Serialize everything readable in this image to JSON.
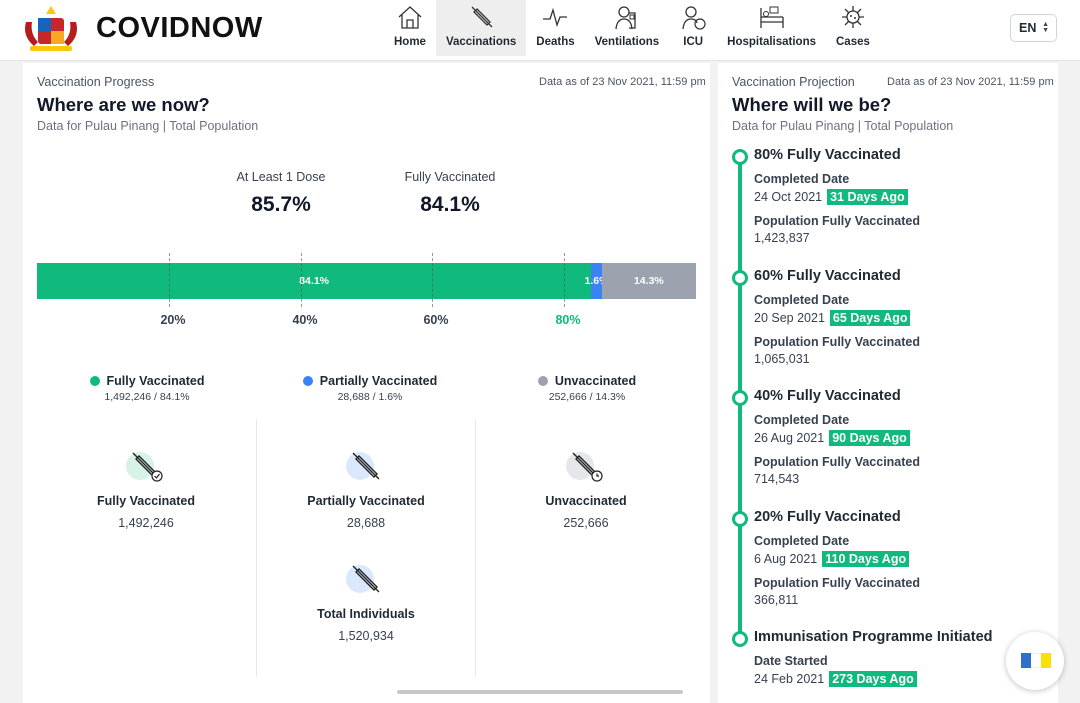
{
  "header": {
    "brand": "COVIDNOW",
    "nav": [
      {
        "label": "Home",
        "icon": "home-icon"
      },
      {
        "label": "Vaccinations",
        "icon": "syringe-icon",
        "active": true
      },
      {
        "label": "Deaths",
        "icon": "pulse-icon"
      },
      {
        "label": "Ventilations",
        "icon": "ventilator-icon"
      },
      {
        "label": "ICU",
        "icon": "icu-icon"
      },
      {
        "label": "Hospitalisations",
        "icon": "hospital-bed-icon"
      },
      {
        "label": "Cases",
        "icon": "virus-icon"
      }
    ],
    "language": "EN"
  },
  "progress": {
    "eyebrow": "Vaccination Progress",
    "as_of": "Data as of 23 Nov 2021, 11:59 pm",
    "title": "Where are we now?",
    "subtitle": "Data for Pulau Pinang | Total Population",
    "at_least_one_label": "At Least 1 Dose",
    "at_least_one_value": "85.7%",
    "fully_label": "Fully Vaccinated",
    "fully_value": "84.1%",
    "bar": {
      "fully_pct": 84.1,
      "partial_pct": 1.6,
      "unvacc_pct": 14.3,
      "fully_text": "84.1%",
      "partial_text": "1.6%",
      "unvacc_text": "14.3%"
    },
    "ticks": [
      "20%",
      "40%",
      "60%",
      "80%"
    ],
    "legend": [
      {
        "label": "Fully Vaccinated",
        "value": "1,492,246 / 84.1%",
        "color": "#10b97c"
      },
      {
        "label": "Partially Vaccinated",
        "value": "28,688 / 1.6%",
        "color": "#3b82f6"
      },
      {
        "label": "Unvaccinated",
        "value": "252,666 / 14.3%",
        "color": "#9ca3af"
      }
    ],
    "counts": [
      {
        "label": "Fully Vaccinated",
        "value": "1,492,246"
      },
      {
        "label": "Partially Vaccinated",
        "value": "28,688"
      },
      {
        "label": "Unvaccinated",
        "value": "252,666"
      },
      {
        "label": "Total Individuals",
        "value": "1,520,934"
      }
    ]
  },
  "projection": {
    "eyebrow": "Vaccination Projection",
    "as_of": "Data as of 23 Nov 2021, 11:59 pm",
    "title": "Where will we be?",
    "subtitle": "Data for Pulau Pinang | Total Population",
    "milestones": [
      {
        "title": "80% Fully Vaccinated",
        "date_label": "Completed Date",
        "date": "24 Oct 2021",
        "badge": "31 Days Ago",
        "pop_label": "Population Fully Vaccinated",
        "pop": "1,423,837"
      },
      {
        "title": "60% Fully Vaccinated",
        "date_label": "Completed Date",
        "date": "20 Sep 2021",
        "badge": "65 Days Ago",
        "pop_label": "Population Fully Vaccinated",
        "pop": "1,065,031"
      },
      {
        "title": "40% Fully Vaccinated",
        "date_label": "Completed Date",
        "date": "26 Aug 2021",
        "badge": "90 Days Ago",
        "pop_label": "Population Fully Vaccinated",
        "pop": "714,543"
      },
      {
        "title": "20% Fully Vaccinated",
        "date_label": "Completed Date",
        "date": "6 Aug 2021",
        "badge": "110 Days Ago",
        "pop_label": "Population Fully Vaccinated",
        "pop": "366,811"
      },
      {
        "title": "Immunisation Programme Initiated",
        "date_label": "Date Started",
        "date": "24 Feb 2021",
        "badge": "273 Days Ago"
      }
    ]
  },
  "colors": {
    "green": "#10b97c",
    "blue": "#3b82f6",
    "grey": "#9ca3af"
  }
}
